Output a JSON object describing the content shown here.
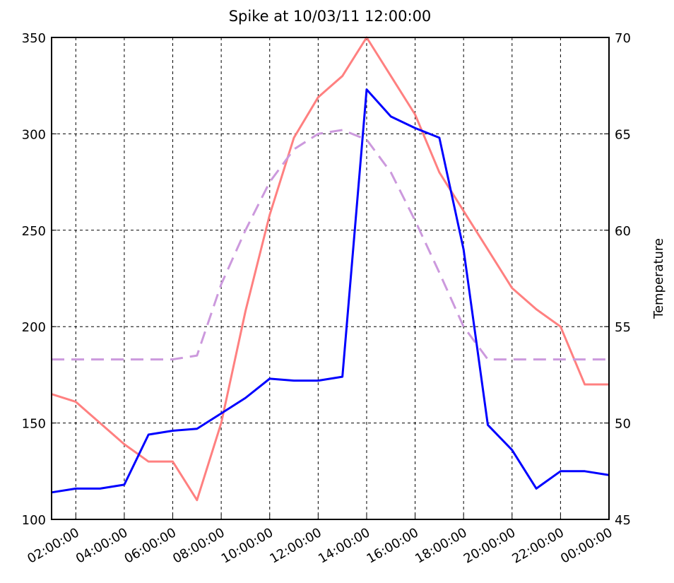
{
  "chart_data": {
    "type": "line",
    "title": "Spike at 10/03/11 12:00:00",
    "y2label": "Temperature",
    "xlim": [
      1,
      24
    ],
    "xticks": [
      {
        "value": 2,
        "label": "02:00:00"
      },
      {
        "value": 4,
        "label": "04:00:00"
      },
      {
        "value": 6,
        "label": "06:00:00"
      },
      {
        "value": 8,
        "label": "08:00:00"
      },
      {
        "value": 10,
        "label": "10:00:00"
      },
      {
        "value": 12,
        "label": "12:00:00"
      },
      {
        "value": 14,
        "label": "14:00:00"
      },
      {
        "value": 16,
        "label": "16:00:00"
      },
      {
        "value": 18,
        "label": "18:00:00"
      },
      {
        "value": 20,
        "label": "20:00:00"
      },
      {
        "value": 22,
        "label": "22:00:00"
      },
      {
        "value": 24,
        "label": "00:00:00"
      }
    ],
    "ylim": [
      100,
      350
    ],
    "yticks": [
      100,
      150,
      200,
      250,
      300,
      350
    ],
    "y2lim": [
      45,
      70
    ],
    "y2ticks": [
      45,
      50,
      55,
      60,
      65,
      70
    ],
    "grid": true,
    "x": [
      1,
      2,
      3,
      4,
      5,
      6,
      7,
      8,
      9,
      10,
      11,
      12,
      13,
      14,
      15,
      16,
      17,
      18,
      19,
      20,
      21,
      22,
      23,
      24
    ],
    "series": [
      {
        "color": "#ff8080",
        "axis": "y2",
        "dash": false,
        "values": [
          51.5,
          51.1,
          50.0,
          48.9,
          48.0,
          48.0,
          46.0,
          50.0,
          55.8,
          60.8,
          64.8,
          66.9,
          68.0,
          70.0,
          68.0,
          66.0,
          63.0,
          61.0,
          59.0,
          57.0,
          55.9,
          55.0,
          52.0,
          52.0
        ]
      },
      {
        "color": "#cc99dd",
        "axis": "y2",
        "dash": true,
        "values": [
          53.3,
          53.3,
          53.3,
          53.3,
          53.3,
          53.3,
          53.5,
          57.2,
          60.0,
          62.5,
          64.2,
          65.0,
          65.2,
          64.7,
          63.0,
          60.5,
          57.8,
          55.0,
          53.3,
          53.3,
          53.3,
          53.3,
          53.3,
          53.3
        ]
      },
      {
        "color": "#0000ff",
        "axis": "y",
        "dash": false,
        "values": [
          114,
          116,
          116,
          118,
          144,
          146,
          147,
          155,
          163,
          173,
          172,
          172,
          174,
          323,
          309,
          303,
          298,
          240,
          149,
          136,
          116,
          125,
          125,
          123
        ]
      }
    ]
  }
}
